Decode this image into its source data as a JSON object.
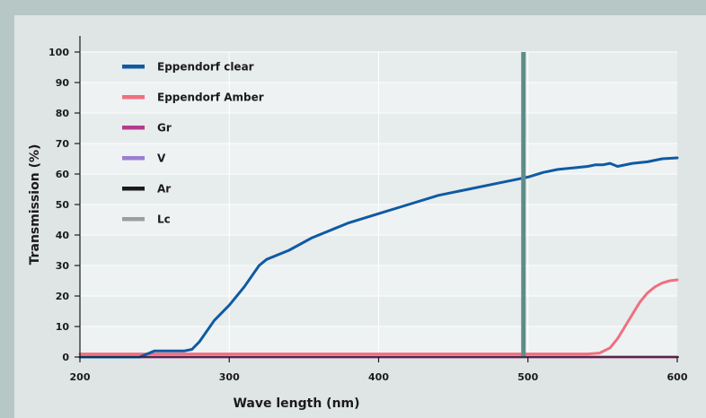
{
  "chart_data": {
    "type": "line",
    "title": "",
    "xlabel": "Wave length (nm)",
    "ylabel": "Transmission (%)",
    "xlim": [
      200,
      600
    ],
    "ylim": [
      0,
      100
    ],
    "x_ticks": [
      200,
      300,
      400,
      500,
      600
    ],
    "y_ticks": [
      0,
      10,
      20,
      30,
      40,
      50,
      60,
      70,
      80,
      90,
      100
    ],
    "grid": true,
    "legend_position": "top-left",
    "marker_line": {
      "x": 497,
      "color": "#5f8c8a"
    },
    "series": [
      {
        "name": "Eppendorf clear",
        "color": "#0f5aa3",
        "x": [
          200,
          240,
          245,
          250,
          260,
          270,
          275,
          280,
          290,
          300,
          310,
          320,
          325,
          340,
          355,
          370,
          380,
          400,
          420,
          440,
          460,
          480,
          490,
          500,
          510,
          520,
          530,
          540,
          545,
          550,
          555,
          560,
          570,
          580,
          590,
          600
        ],
        "y": [
          0,
          0,
          1,
          2,
          2,
          2,
          2.5,
          5,
          12,
          17,
          23,
          30,
          32,
          35,
          39,
          42,
          44,
          47,
          50,
          53,
          55,
          57,
          58,
          59,
          60.5,
          61.5,
          62,
          62.5,
          63,
          63,
          63.5,
          62.5,
          63.5,
          64,
          65,
          65.3
        ]
      },
      {
        "name": "Eppendorf Amber",
        "color": "#f06f80",
        "x": [
          200,
          540,
          548,
          555,
          560,
          565,
          570,
          575,
          580,
          585,
          590,
          595,
          600
        ],
        "y": [
          1,
          1,
          1.3,
          3,
          6,
          10,
          14,
          18,
          21,
          23,
          24.3,
          25,
          25.3
        ]
      },
      {
        "name": "Gr",
        "color": "#b23c8c",
        "x": [
          200,
          600
        ],
        "y": [
          0,
          0
        ]
      },
      {
        "name": "V",
        "color": "#9b7fcf",
        "x": [
          200,
          600
        ],
        "y": [
          0,
          0
        ]
      },
      {
        "name": "Ar",
        "color": "#1a1a1a",
        "x": [
          200,
          600
        ],
        "y": [
          0,
          0
        ]
      },
      {
        "name": "Lc",
        "color": "#9e9e9e",
        "x": [
          200,
          600
        ],
        "y": [
          0,
          0
        ]
      }
    ]
  }
}
